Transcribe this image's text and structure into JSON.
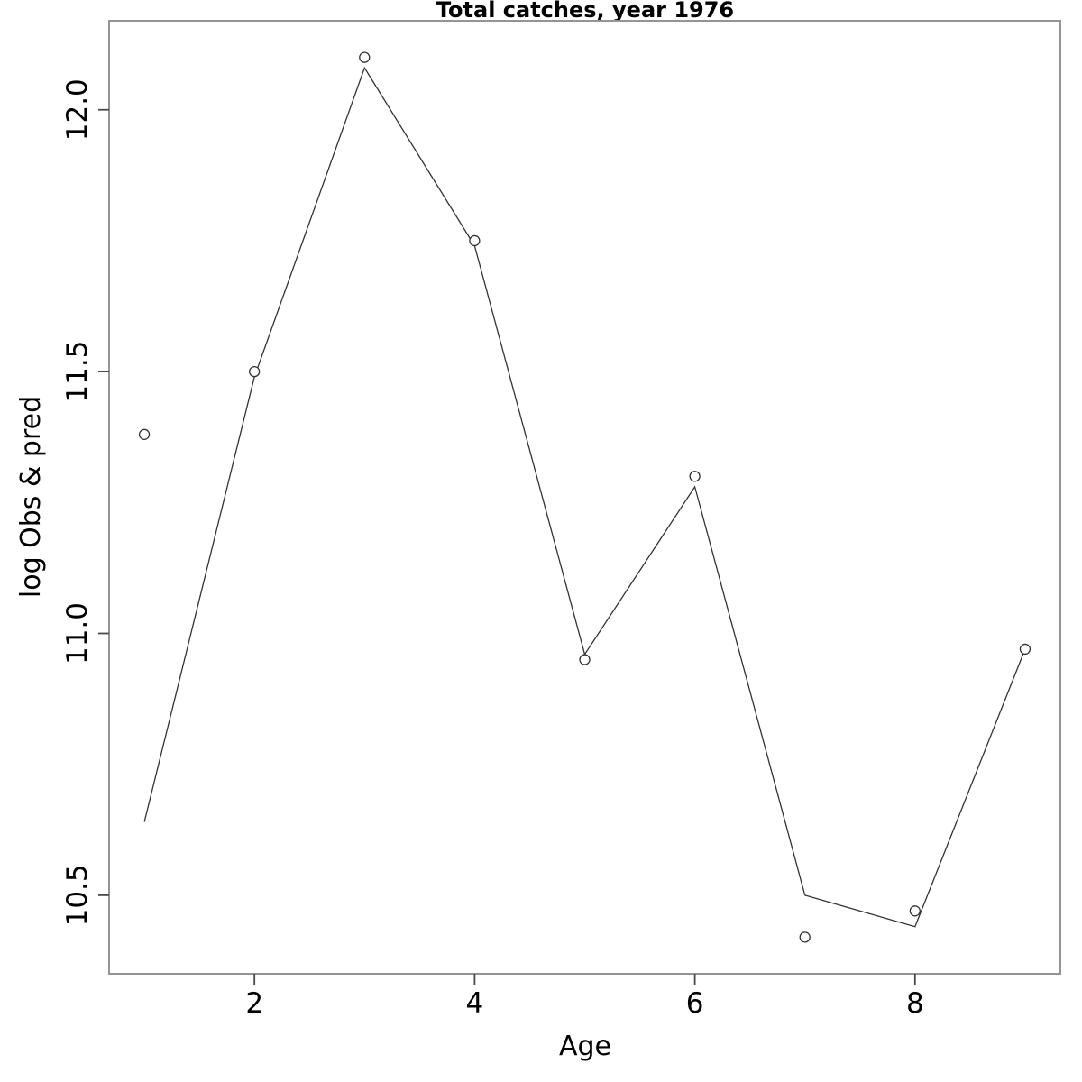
{
  "figure": {
    "background": "#ffffff",
    "box_color": "#949494",
    "tick_color": "#4a4a4a",
    "line_color": "#333333",
    "point_stroke_color": "#333333",
    "text_color": "#000000"
  },
  "chart_data": {
    "type": "line",
    "title": "Total catches, year 1976",
    "xlabel": "Age",
    "ylabel": "log Obs & pred",
    "x": [
      1,
      2,
      3,
      4,
      5,
      6,
      7,
      8,
      9
    ],
    "series": [
      {
        "name": "observed",
        "style": "points-open-circle",
        "values": [
          11.38,
          11.5,
          12.1,
          11.75,
          10.95,
          11.3,
          10.42,
          10.47,
          10.97
        ]
      },
      {
        "name": "predicted",
        "style": "line",
        "values": [
          10.64,
          11.49,
          12.08,
          11.74,
          10.96,
          11.28,
          10.5,
          10.44,
          10.97
        ]
      }
    ],
    "xticks": [
      2,
      4,
      6,
      8
    ],
    "xtick_labels": [
      "2",
      "4",
      "6",
      "8"
    ],
    "yticks": [
      10.5,
      11.0,
      11.5,
      12.0
    ],
    "ytick_labels": [
      "10.5",
      "11.0",
      "11.5",
      "12.0"
    ],
    "xlim": [
      0.68,
      9.32
    ],
    "ylim": [
      10.35,
      12.17
    ],
    "grid": false,
    "legend_position": "none"
  }
}
